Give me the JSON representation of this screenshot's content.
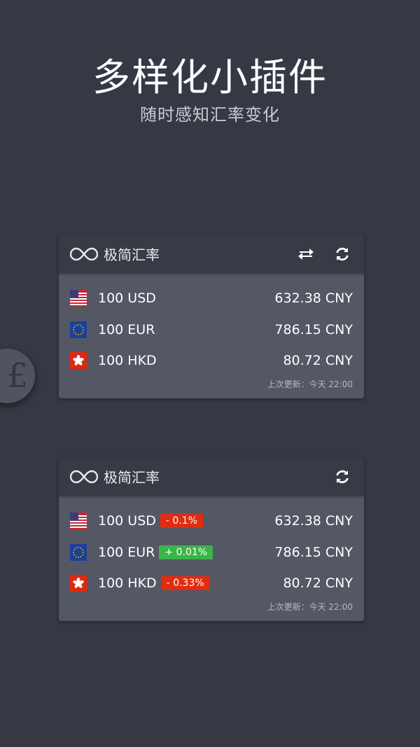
{
  "header": {
    "title": "多样化小插件",
    "subtitle": "随时感知汇率变化"
  },
  "coin_symbol": "£",
  "colors": {
    "background": "#363944",
    "card_header": "#383b45",
    "card_body": "#545864",
    "down": "#e02c10",
    "up": "#3ab548"
  },
  "widgets": [
    {
      "brand": "极简汇率",
      "buttons": [
        "swap-icon",
        "refresh-icon"
      ],
      "rows": [
        {
          "currency": "USD",
          "amount": "100 USD",
          "value": "632.38 CNY"
        },
        {
          "currency": "EUR",
          "amount": "100 EUR",
          "value": "786.15 CNY"
        },
        {
          "currency": "HKD",
          "amount": "100 HKD",
          "value": "80.72 CNY"
        }
      ],
      "updated": "上次更新：今天 22:00"
    },
    {
      "brand": "极简汇率",
      "buttons": [
        "refresh-icon"
      ],
      "rows": [
        {
          "currency": "USD",
          "amount": "100 USD",
          "change": "- 0.1%",
          "trend": "down",
          "value": "632.38 CNY"
        },
        {
          "currency": "EUR",
          "amount": "100 EUR",
          "change": "+ 0.01%",
          "trend": "up",
          "value": "786.15 CNY"
        },
        {
          "currency": "HKD",
          "amount": "100 HKD",
          "change": "- 0.33%",
          "trend": "down",
          "value": "80.72 CNY"
        }
      ],
      "updated": "上次更新：今天 22:00"
    }
  ]
}
